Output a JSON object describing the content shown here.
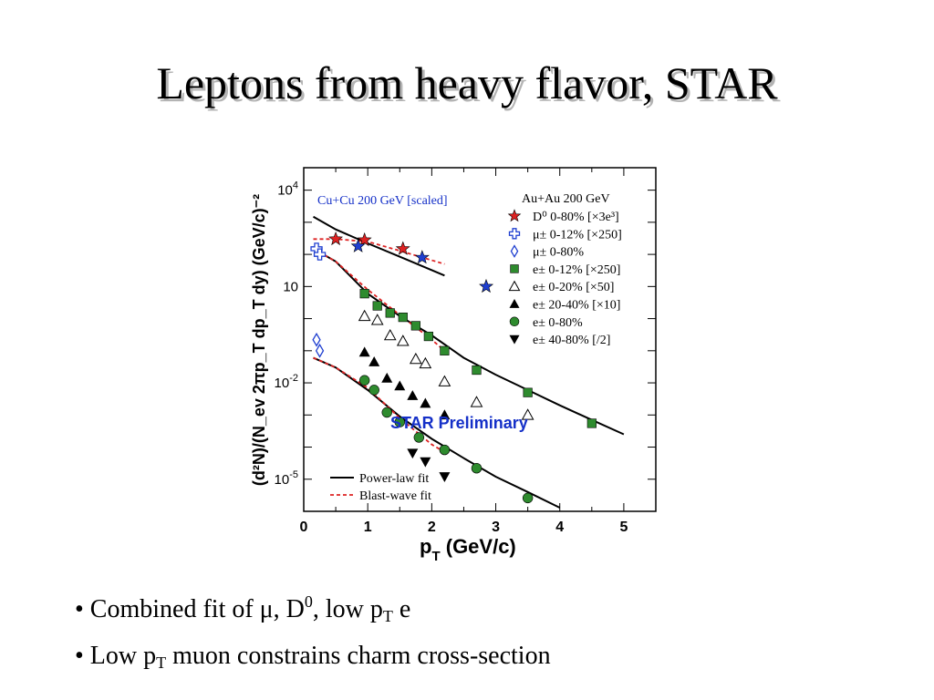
{
  "slide": {
    "title": "Leptons from heavy flavor, STAR",
    "bullets": [
      {
        "prefix": "• Combined fit of μ, D",
        "sup": "0",
        "middle": ", low p",
        "sub": "T",
        "suffix": " e"
      },
      {
        "prefix": "• Low p",
        "sub": "T",
        "suffix": " muon constrains charm cross-section"
      }
    ]
  },
  "chart_data": {
    "type": "scatter",
    "y_scale": "log",
    "xlim": [
      0,
      5.5
    ],
    "ylim": [
      1e-06,
      50000
    ],
    "x_ticks": [
      "0",
      "1",
      "2",
      "3",
      "4",
      "5"
    ],
    "y_ticks": [
      {
        "value": 10000,
        "base": "10",
        "exp": "4"
      },
      {
        "value": 10,
        "base": "10",
        "exp": ""
      },
      {
        "value": 0.01,
        "base": "10",
        "exp": "-2"
      },
      {
        "value": 1e-05,
        "base": "10",
        "exp": "-5"
      }
    ],
    "xlabel": {
      "main": "p",
      "sub": "T",
      "rest": " (GeV/c)"
    },
    "ylabel": "(d²N)/(N_ev 2πp_T dp_T dy) (GeV/c)⁻²",
    "top_left_label": "Cu+Cu 200 GeV [scaled]",
    "legend_title": "Au+Au 200 GeV",
    "watermark": "STAR Preliminary",
    "colors": {
      "red": "#dd2222",
      "blue": "#1f3fd0",
      "green": "#2e8b2e",
      "label_blue": "#1530c8"
    },
    "series": [
      {
        "name": "D⁰ 0-80% [×3e³]",
        "marker": "star",
        "color": "#dd2222",
        "points": [
          [
            0.5,
            300
          ],
          [
            0.95,
            280
          ],
          [
            1.55,
            150
          ]
        ]
      },
      {
        "name": "μ± 0-12% [×250]",
        "marker": "cross-open",
        "color": "#1f3fd0",
        "points": [
          [
            0.2,
            150
          ],
          [
            0.25,
            100
          ]
        ]
      },
      {
        "name": "μ± 0-80%",
        "marker": "diamond-open",
        "color": "#1f3fd0",
        "points": [
          [
            0.2,
            0.22
          ],
          [
            0.25,
            0.1
          ]
        ]
      },
      {
        "name": "e± 0-12% [×250]",
        "marker": "square",
        "color": "#2e8b2e",
        "points": [
          [
            0.95,
            6
          ],
          [
            1.15,
            2.5
          ],
          [
            1.35,
            1.5
          ],
          [
            1.55,
            1.1
          ],
          [
            1.75,
            0.6
          ],
          [
            1.95,
            0.28
          ],
          [
            2.2,
            0.1
          ],
          [
            2.7,
            0.025
          ],
          [
            3.5,
            0.005
          ],
          [
            4.5,
            0.00055
          ]
        ]
      },
      {
        "name": "e± 0-20% [×50]",
        "marker": "triangle-open",
        "color": "#000000",
        "points": [
          [
            0.95,
            1.2
          ],
          [
            1.15,
            0.9
          ],
          [
            1.35,
            0.3
          ],
          [
            1.55,
            0.2
          ],
          [
            1.75,
            0.055
          ],
          [
            1.9,
            0.04
          ],
          [
            2.2,
            0.011
          ],
          [
            2.7,
            0.0025
          ],
          [
            3.5,
            0.001
          ]
        ]
      },
      {
        "name": "e± 20-40% [×10]",
        "marker": "triangle",
        "color": "#000000",
        "points": [
          [
            0.95,
            0.09
          ],
          [
            1.1,
            0.045
          ],
          [
            1.3,
            0.014
          ],
          [
            1.5,
            0.008
          ],
          [
            1.7,
            0.004
          ],
          [
            1.9,
            0.0023
          ],
          [
            2.2,
            0.001
          ]
        ]
      },
      {
        "name": "e± 0-80%",
        "marker": "circle",
        "color": "#2e8b2e",
        "points": [
          [
            0.95,
            0.012
          ],
          [
            1.1,
            0.006
          ],
          [
            1.3,
            0.0012
          ],
          [
            1.5,
            0.0006
          ],
          [
            1.8,
            0.0002
          ],
          [
            2.2,
            8.2e-05
          ],
          [
            2.7,
            2.2e-05
          ],
          [
            3.5,
            2.6e-06
          ]
        ]
      },
      {
        "name": "e± 40-80% [/2]",
        "marker": "triangle-down",
        "color": "#000000",
        "points": [
          [
            1.7,
            6.5e-05
          ],
          [
            1.9,
            3.5e-05
          ],
          [
            2.2,
            1.2e-05
          ]
        ]
      }
    ],
    "extra_stars": [
      [
        0.85,
        180
      ],
      [
        1.85,
        80
      ],
      [
        2.85,
        10
      ]
    ],
    "fits": [
      {
        "name": "Power-law fit",
        "style": "solid",
        "curves": [
          [
            [
              0.15,
              1500
            ],
            [
              0.5,
              600
            ],
            [
              1.0,
              220
            ],
            [
              1.6,
              70
            ],
            [
              2.2,
              22
            ]
          ],
          [
            [
              0.15,
              150
            ],
            [
              0.5,
              60
            ],
            [
              1.0,
              6
            ],
            [
              1.5,
              1.2
            ],
            [
              2.0,
              0.3
            ],
            [
              2.5,
              0.06
            ],
            [
              3.0,
              0.018
            ],
            [
              3.5,
              0.006
            ],
            [
              4.0,
              0.002
            ],
            [
              4.5,
              0.0007
            ],
            [
              5.0,
              0.00025
            ]
          ],
          [
            [
              0.15,
              0.06
            ],
            [
              0.5,
              0.03
            ],
            [
              1.0,
              0.006
            ],
            [
              1.5,
              0.0009
            ],
            [
              2.0,
              0.00018
            ],
            [
              2.5,
              4.5e-05
            ],
            [
              3.0,
              1.2e-05
            ],
            [
              3.5,
              4e-06
            ],
            [
              4.0,
              1.3e-06
            ]
          ]
        ]
      },
      {
        "name": "Blast-wave fit",
        "style": "dashed",
        "curves": [
          [
            [
              0.15,
              300
            ],
            [
              0.5,
              300
            ],
            [
              1.0,
              250
            ],
            [
              1.5,
              130
            ],
            [
              2.2,
              50
            ]
          ],
          [
            [
              0.15,
              150
            ],
            [
              0.5,
              60
            ],
            [
              1.0,
              8
            ],
            [
              1.5,
              1.3
            ],
            [
              2.0,
              0.22
            ],
            [
              2.2,
              0.1
            ]
          ],
          [
            [
              0.15,
              0.06
            ],
            [
              0.5,
              0.03
            ],
            [
              1.0,
              0.007
            ],
            [
              1.5,
              0.0008
            ],
            [
              2.0,
              0.00012
            ],
            [
              2.2,
              7e-05
            ]
          ]
        ]
      }
    ],
    "legend": {
      "placement": "top-right",
      "fit_legend_placement": "bottom-left"
    }
  }
}
